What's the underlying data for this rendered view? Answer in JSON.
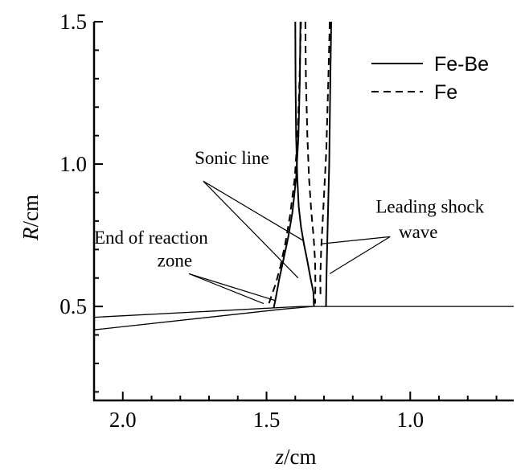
{
  "chart_data": {
    "type": "line",
    "xlabel": {
      "italic": "z",
      "rest": "/cm"
    },
    "ylabel": {
      "italic": "R",
      "rest": "/cm"
    },
    "xlim": [
      2.1,
      0.64
    ],
    "ylim": [
      0.17,
      1.5
    ],
    "x_reversed": true,
    "x_ticks": [
      "2.0",
      "1.5",
      "1.0"
    ],
    "y_ticks": [
      "0.5",
      "1.0",
      "1.5"
    ],
    "grid": false,
    "legend_position": "top-right",
    "series": [
      {
        "name": "Fe-Be",
        "style": "solid",
        "lines": [
          [
            [
              1.4,
              1.5
            ],
            [
              1.399,
              1.3
            ],
            [
              1.397,
              1.1
            ],
            [
              1.393,
              0.95
            ],
            [
              1.388,
              0.85
            ],
            [
              1.38,
              0.78
            ],
            [
              1.37,
              0.72
            ],
            [
              1.358,
              0.66
            ],
            [
              1.347,
              0.6
            ],
            [
              1.337,
              0.55
            ],
            [
              1.335,
              0.5
            ]
          ],
          [
            [
              1.382,
              1.5
            ],
            [
              1.384,
              1.3
            ],
            [
              1.389,
              1.1
            ],
            [
              1.397,
              0.95
            ],
            [
              1.41,
              0.83
            ],
            [
              1.425,
              0.74
            ],
            [
              1.44,
              0.67
            ],
            [
              1.455,
              0.6
            ],
            [
              1.468,
              0.53
            ],
            [
              1.475,
              0.495
            ]
          ],
          [
            [
              1.275,
              1.5
            ],
            [
              1.278,
              1.3
            ],
            [
              1.282,
              1.0
            ],
            [
              1.287,
              0.8
            ],
            [
              1.291,
              0.62
            ],
            [
              1.293,
              0.5
            ]
          ]
        ]
      },
      {
        "name": "Fe",
        "style": "dashed",
        "lines": [
          [
            [
              1.38,
              1.5
            ],
            [
              1.385,
              1.3
            ],
            [
              1.392,
              1.1
            ],
            [
              1.402,
              0.95
            ],
            [
              1.418,
              0.82
            ],
            [
              1.435,
              0.72
            ],
            [
              1.452,
              0.64
            ],
            [
              1.468,
              0.58
            ],
            [
              1.482,
              0.54
            ],
            [
              1.495,
              0.5
            ]
          ],
          [
            [
              1.365,
              1.5
            ],
            [
              1.363,
              1.3
            ],
            [
              1.358,
              1.1
            ],
            [
              1.352,
              0.95
            ],
            [
              1.344,
              0.83
            ],
            [
              1.336,
              0.74
            ],
            [
              1.331,
              0.66
            ],
            [
              1.33,
              0.58
            ],
            [
              1.331,
              0.51
            ]
          ],
          [
            [
              1.28,
              1.5
            ],
            [
              1.285,
              1.3
            ],
            [
              1.292,
              1.05
            ],
            [
              1.302,
              0.85
            ],
            [
              1.31,
              0.7
            ],
            [
              1.313,
              0.6
            ],
            [
              1.312,
              0.53
            ]
          ]
        ]
      }
    ],
    "reference_lines": [
      [
        [
          2.1,
          0.462
        ],
        [
          1.38,
          0.5
        ],
        [
          0.64,
          0.5
        ]
      ],
      [
        [
          2.1,
          0.418
        ],
        [
          1.45,
          0.49
        ],
        [
          1.34,
          0.5
        ]
      ]
    ],
    "annotations": [
      {
        "text": "Sonic line",
        "text_at": [
          1.75,
          1.0
        ],
        "leader_from": [
          1.72,
          0.94
        ],
        "targets": [
          [
            1.37,
            0.73
          ],
          [
            1.39,
            0.6
          ]
        ]
      },
      {
        "text": "End of reaction",
        "text_at": [
          2.1,
          0.72
        ],
        "leader_from": null,
        "targets": []
      },
      {
        "text": "zone",
        "text_at": [
          1.88,
          0.64
        ],
        "leader_from": [
          1.77,
          0.615
        ],
        "targets": [
          [
            1.51,
            0.51
          ],
          [
            1.467,
            0.52
          ]
        ]
      },
      {
        "text": "Leading shock",
        "text_at": [
          1.12,
          0.83
        ],
        "leader_from": null,
        "targets": []
      },
      {
        "text": "wave",
        "text_at": [
          1.04,
          0.74
        ],
        "leader_from": [
          1.07,
          0.745
        ],
        "targets": [
          [
            1.31,
            0.72
          ],
          [
            1.28,
            0.615
          ]
        ]
      }
    ]
  }
}
